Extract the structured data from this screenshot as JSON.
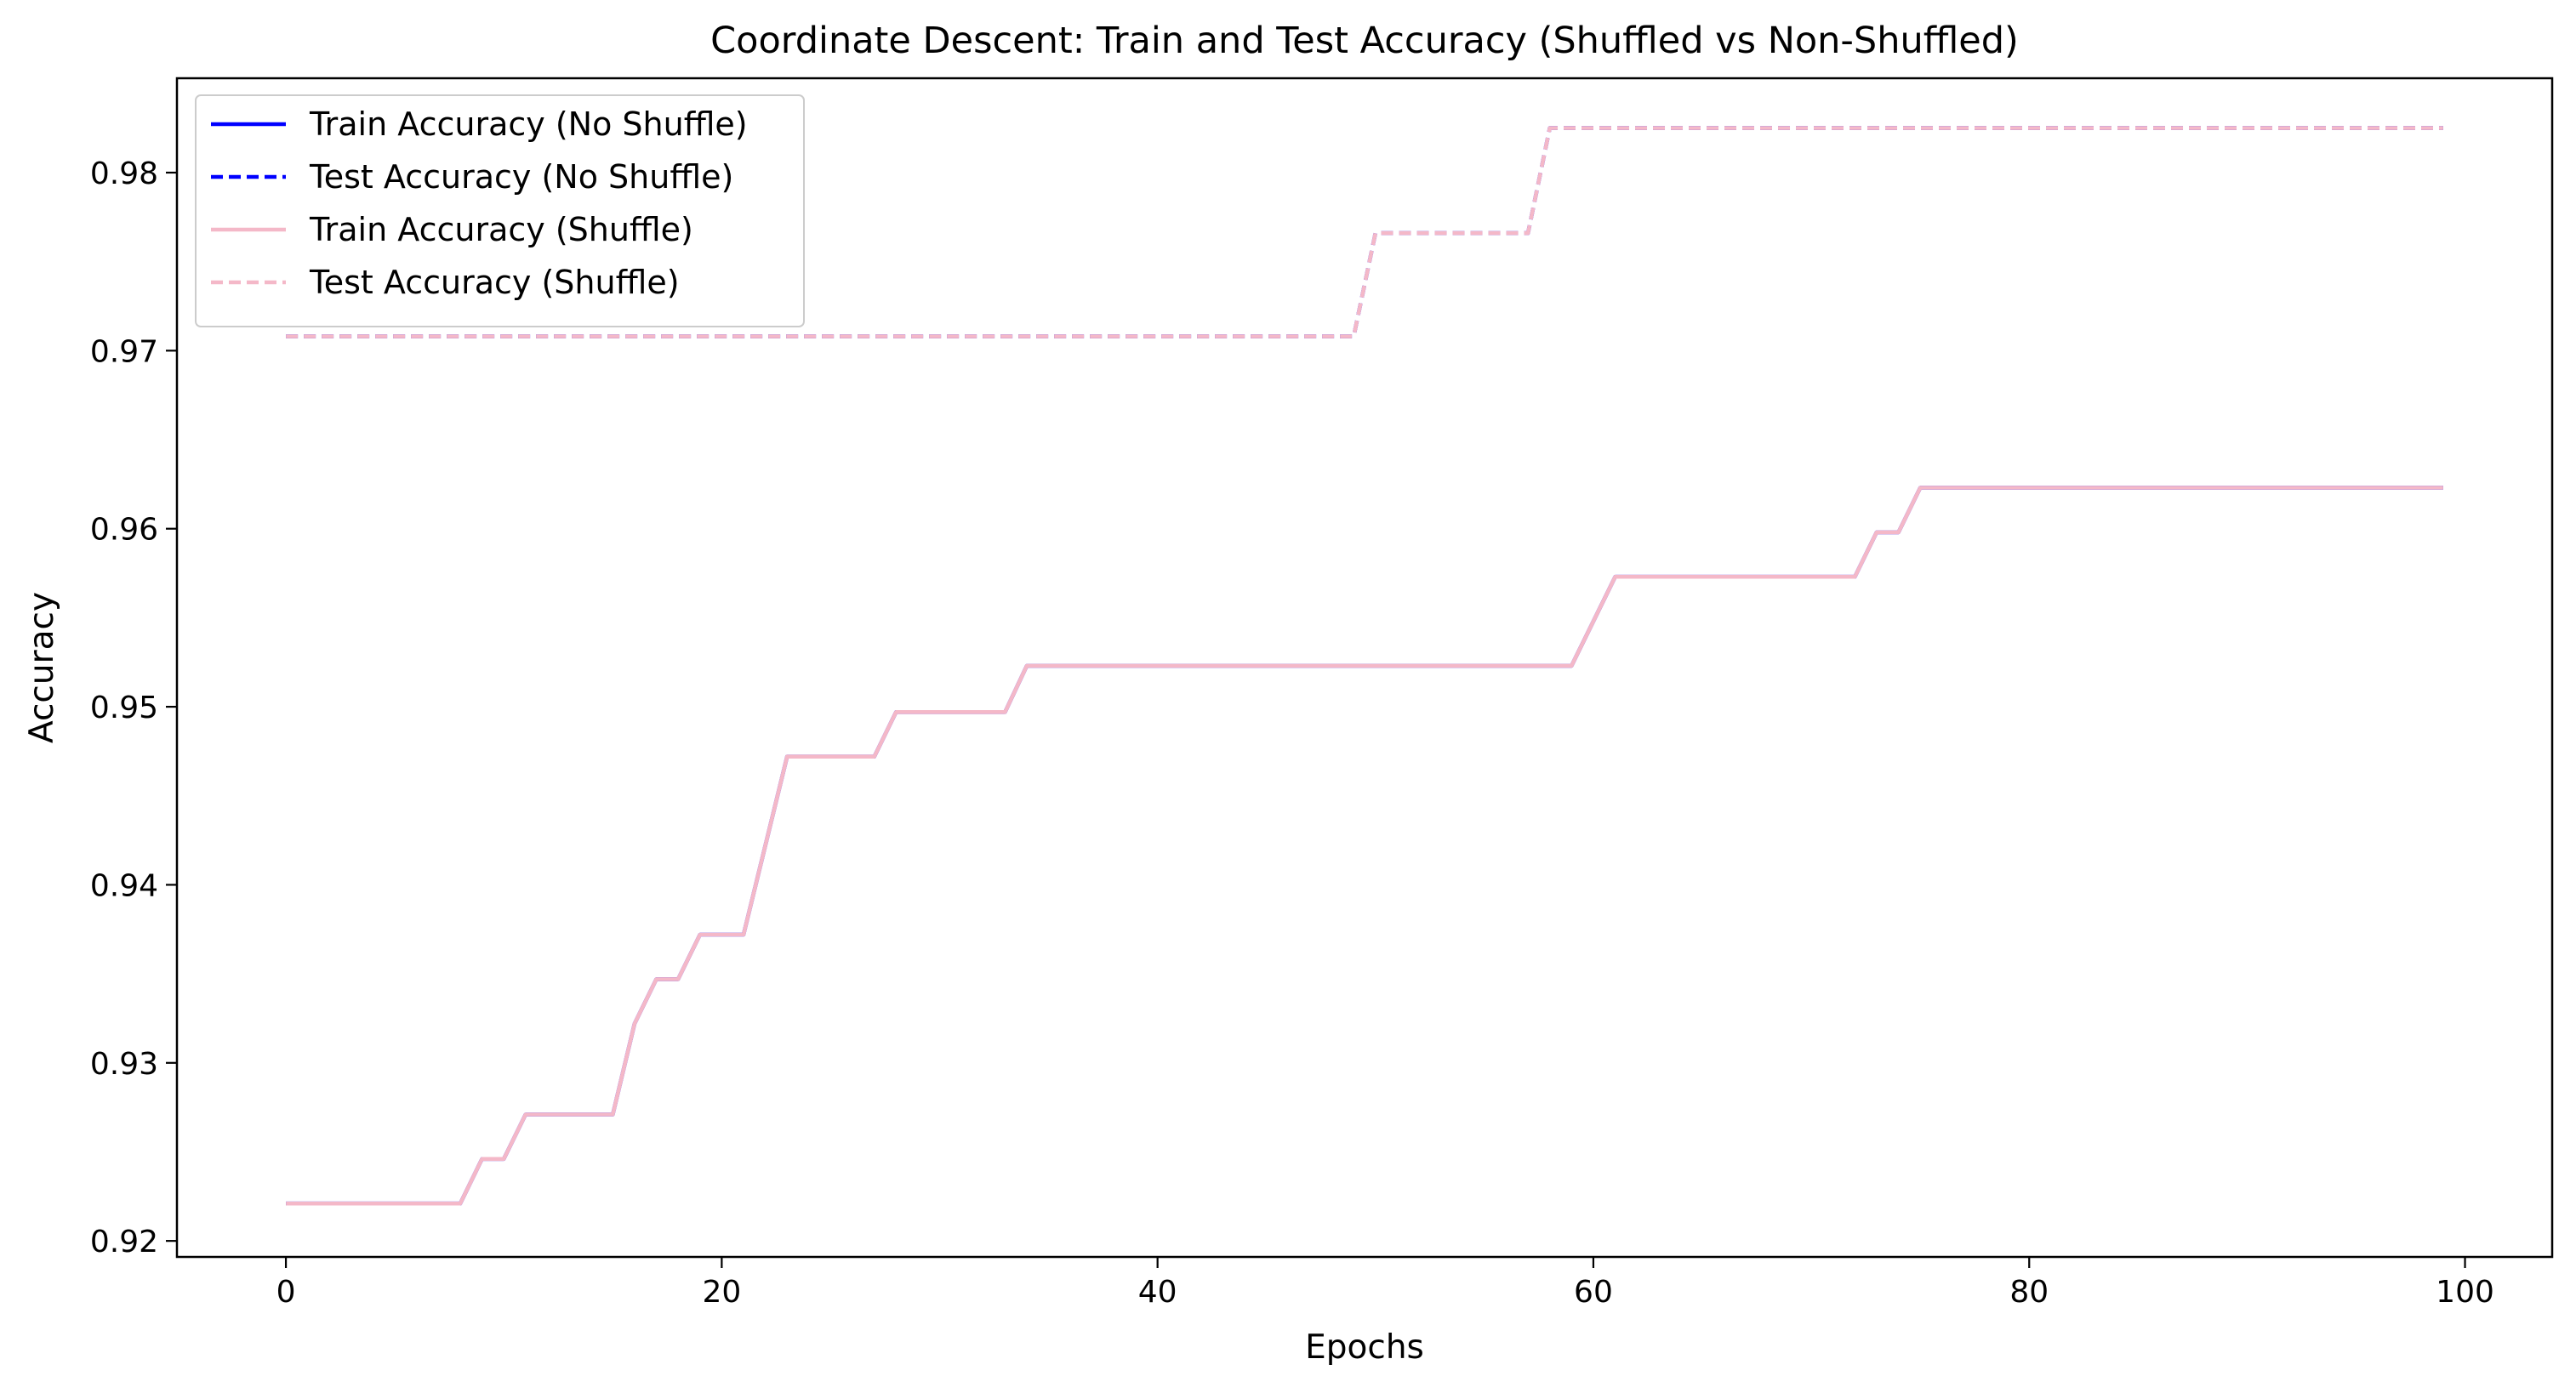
{
  "chart_data": {
    "type": "line",
    "title": "Coordinate Descent: Train and Test Accuracy (Shuffled vs Non-Shuffled)",
    "xlabel": "Epochs",
    "ylabel": "Accuracy",
    "xlim": [
      -5,
      104
    ],
    "ylim": [
      0.9191,
      0.9853
    ],
    "xticks": [
      0,
      20,
      40,
      60,
      80,
      100
    ],
    "xtick_labels": [
      "0",
      "20",
      "40",
      "60",
      "80",
      "100"
    ],
    "yticks": [
      0.92,
      0.93,
      0.94,
      0.95,
      0.96,
      0.97,
      0.98
    ],
    "ytick_labels": [
      "0.92",
      "0.93",
      "0.94",
      "0.95",
      "0.96",
      "0.97",
      "0.98"
    ],
    "grid": false,
    "legend_position": "top-left",
    "series": [
      {
        "name": "Train Accuracy (No Shuffle)",
        "color": "#0000ff",
        "dash": "solid",
        "points": [
          [
            0,
            0.9221
          ],
          [
            8,
            0.9221
          ],
          [
            9,
            0.9246
          ],
          [
            10,
            0.9246
          ],
          [
            11,
            0.9271
          ],
          [
            15,
            0.9271
          ],
          [
            16,
            0.9322
          ],
          [
            17,
            0.9347
          ],
          [
            18,
            0.9347
          ],
          [
            19,
            0.9372
          ],
          [
            21,
            0.9372
          ],
          [
            23,
            0.9472
          ],
          [
            27,
            0.9472
          ],
          [
            28,
            0.9497
          ],
          [
            33,
            0.9497
          ],
          [
            34,
            0.9523
          ],
          [
            59,
            0.9523
          ],
          [
            61,
            0.9573
          ],
          [
            72,
            0.9573
          ],
          [
            73,
            0.9598
          ],
          [
            74,
            0.9598
          ],
          [
            75,
            0.9623
          ],
          [
            99,
            0.9623
          ]
        ]
      },
      {
        "name": "Test Accuracy (No Shuffle)",
        "color": "#0000ff",
        "dash": "dashed",
        "points": [
          [
            0,
            0.9708
          ],
          [
            49,
            0.9708
          ],
          [
            50,
            0.9766
          ],
          [
            57,
            0.9766
          ],
          [
            58,
            0.9825
          ],
          [
            99,
            0.9825
          ]
        ]
      },
      {
        "name": "Train Accuracy (Shuffle)",
        "color": "#f4b8c8",
        "dash": "solid",
        "points": [
          [
            0,
            0.9221
          ],
          [
            8,
            0.9221
          ],
          [
            9,
            0.9246
          ],
          [
            10,
            0.9246
          ],
          [
            11,
            0.9271
          ],
          [
            15,
            0.9271
          ],
          [
            16,
            0.9322
          ],
          [
            17,
            0.9347
          ],
          [
            18,
            0.9347
          ],
          [
            19,
            0.9372
          ],
          [
            21,
            0.9372
          ],
          [
            23,
            0.9472
          ],
          [
            27,
            0.9472
          ],
          [
            28,
            0.9497
          ],
          [
            33,
            0.9497
          ],
          [
            34,
            0.9523
          ],
          [
            59,
            0.9523
          ],
          [
            61,
            0.9573
          ],
          [
            72,
            0.9573
          ],
          [
            73,
            0.9598
          ],
          [
            74,
            0.9598
          ],
          [
            75,
            0.9623
          ],
          [
            99,
            0.9623
          ]
        ]
      },
      {
        "name": "Test Accuracy (Shuffle)",
        "color": "#f4b8c8",
        "dash": "dashed",
        "points": [
          [
            0,
            0.9708
          ],
          [
            49,
            0.9708
          ],
          [
            50,
            0.9766
          ],
          [
            57,
            0.9766
          ],
          [
            58,
            0.9825
          ],
          [
            99,
            0.9825
          ]
        ]
      }
    ]
  }
}
